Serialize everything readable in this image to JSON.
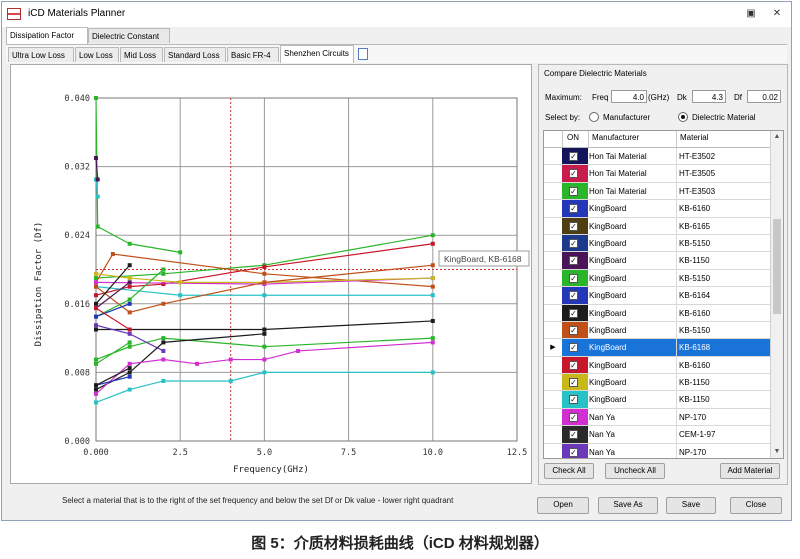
{
  "window": {
    "title": "iCD Materials Planner",
    "controls": [
      "minimize-icon",
      "close-icon"
    ],
    "colors": {
      "background": "#f0f0f0",
      "selection": "#1a73d9"
    }
  },
  "top_tabs": [
    "Dissipation Factor",
    "Dielectric Constant"
  ],
  "sub_tabs": [
    "Ultra Low Loss",
    "Low Loss",
    "Mid Loss",
    "Standard Loss",
    "Basic FR-4",
    "Shenzhen Circuits"
  ],
  "status_text": "Select a material that is to the right of the set frequency and below the set Df or Dk value - lower right quadrant",
  "compare": {
    "title": "Compare Dielectric Materials",
    "maximum_label": "Maximum:",
    "freq_label": "Freq",
    "freq_value": "4.0",
    "ghz_label": "(GHz)",
    "dk_label": "Dk",
    "dk_value": "4.3",
    "df_label": "Df",
    "df_value": "0.02",
    "select_by": "Select by:",
    "radio_manufacturer": "Manufacturer",
    "radio_dielectric": "Dielectric Material",
    "selected_radio": "Dielectric Material"
  },
  "grid": {
    "headers": [
      "ON",
      "Manufacturer",
      "Material"
    ],
    "rows": [
      {
        "manufacturer": "Hon Tai Material",
        "material": "HT-E3502",
        "color": "#14145a",
        "checked": true,
        "selected": false
      },
      {
        "manufacturer": "Hon Tai Material",
        "material": "HT-E3505",
        "color": "#c81c4c",
        "checked": true,
        "selected": false
      },
      {
        "manufacturer": "Hon Tai Material",
        "material": "HT-E3503",
        "color": "#2ab52a",
        "checked": true,
        "selected": false
      },
      {
        "manufacturer": "KingBoard",
        "material": "KB-6160",
        "color": "#2337b8",
        "checked": true,
        "selected": false
      },
      {
        "manufacturer": "KingBoard",
        "material": "KB-6165",
        "color": "#4d3f12",
        "checked": true,
        "selected": false
      },
      {
        "manufacturer": "KingBoard",
        "material": "KB-5150",
        "color": "#1c3a8c",
        "checked": true,
        "selected": false
      },
      {
        "manufacturer": "KingBoard",
        "material": "KB-1150",
        "color": "#4b1458",
        "checked": true,
        "selected": false
      },
      {
        "manufacturer": "KingBoard",
        "material": "KB-5150",
        "color": "#2ab52a",
        "checked": true,
        "selected": false
      },
      {
        "manufacturer": "KingBoard",
        "material": "KB-6164",
        "color": "#2337b8",
        "checked": true,
        "selected": false
      },
      {
        "manufacturer": "KingBoard",
        "material": "KB-6160",
        "color": "#1c1c1c",
        "checked": true,
        "selected": false
      },
      {
        "manufacturer": "KingBoard",
        "material": "KB-5150",
        "color": "#c05018",
        "checked": true,
        "selected": false
      },
      {
        "manufacturer": "KingBoard",
        "material": "KB-6168",
        "color": "#1a73d9",
        "checked": true,
        "selected": true
      },
      {
        "manufacturer": "KingBoard",
        "material": "KB-6160",
        "color": "#c8162a",
        "checked": true,
        "selected": false
      },
      {
        "manufacturer": "KingBoard",
        "material": "KB-1150",
        "color": "#c9b81a",
        "checked": true,
        "selected": false
      },
      {
        "manufacturer": "KingBoard",
        "material": "KB-1150",
        "color": "#27c2c6",
        "checked": true,
        "selected": false
      },
      {
        "manufacturer": "Nan Ya",
        "material": "NP-170",
        "color": "#d12fd1",
        "checked": true,
        "selected": false
      },
      {
        "manufacturer": "Nan Ya",
        "material": "CEM-1-97",
        "color": "#2a2a2a",
        "checked": true,
        "selected": false
      },
      {
        "manufacturer": "Nan Ya",
        "material": "NP-170",
        "color": "#6a38b8",
        "checked": true,
        "selected": false
      }
    ]
  },
  "buttons": {
    "check_all": "Check All",
    "uncheck_all": "Uncheck All",
    "add_material": "Add Material",
    "open": "Open",
    "save_as": "Save As",
    "save": "Save",
    "close": "Close"
  },
  "tooltip": "KingBoard, KB-6168",
  "caption": "图 5：介质材料损耗曲线（iCD 材料规划器）",
  "chart_data": {
    "type": "line",
    "xlabel": "Frequency(GHz)",
    "ylabel": "Dissipation Factor (Df)",
    "xlim": [
      0,
      12.5
    ],
    "ylim": [
      0,
      0.04
    ],
    "x_ticks": [
      "0.000",
      "2.5",
      "5.0",
      "7.5",
      "10.0",
      "12.5"
    ],
    "y_ticks": [
      "0.000",
      "0.008",
      "0.016",
      "0.024",
      "0.032",
      "0.040"
    ],
    "grid": true,
    "reference_lines": {
      "freq": 4.0,
      "df": 0.02
    },
    "series": [
      {
        "color": "#2ab52a",
        "points": [
          [
            0,
            0.04
          ],
          [
            0.05,
            0.025
          ],
          [
            1,
            0.023
          ],
          [
            2.5,
            0.022
          ]
        ]
      },
      {
        "color": "#2ab52a",
        "points": [
          [
            0,
            0.019
          ],
          [
            2,
            0.0195
          ],
          [
            5,
            0.0205
          ],
          [
            10,
            0.024
          ]
        ]
      },
      {
        "color": "#c8162a",
        "points": [
          [
            0,
            0.017
          ],
          [
            1,
            0.018
          ],
          [
            2,
            0.0183
          ],
          [
            5,
            0.0203
          ],
          [
            10,
            0.023
          ]
        ]
      },
      {
        "color": "#c05018",
        "points": [
          [
            0,
            0.0185
          ],
          [
            0.5,
            0.0218
          ],
          [
            5,
            0.0195
          ],
          [
            10,
            0.018
          ]
        ]
      },
      {
        "color": "#d12fd1",
        "points": [
          [
            0,
            0.0185
          ],
          [
            5,
            0.0183
          ],
          [
            10,
            0.019
          ]
        ]
      },
      {
        "color": "#c9b81a",
        "points": [
          [
            0,
            0.0195
          ],
          [
            1,
            0.019
          ],
          [
            2.5,
            0.0185
          ],
          [
            5,
            0.0185
          ],
          [
            10,
            0.019
          ]
        ]
      },
      {
        "color": "#27c2c6",
        "points": [
          [
            0,
            0.018
          ],
          [
            2.5,
            0.017
          ],
          [
            5,
            0.017
          ],
          [
            10,
            0.017
          ]
        ]
      },
      {
        "color": "#c05018",
        "points": [
          [
            0,
            0.018
          ],
          [
            1,
            0.015
          ],
          [
            2,
            0.016
          ],
          [
            5,
            0.0185
          ],
          [
            10,
            0.0205
          ]
        ]
      },
      {
        "color": "#2ab52a",
        "points": [
          [
            0,
            0.0145
          ],
          [
            1,
            0.0165
          ],
          [
            2,
            0.02
          ]
        ]
      },
      {
        "color": "#1c1c1c",
        "points": [
          [
            0,
            0.016
          ],
          [
            1,
            0.0205
          ]
        ]
      },
      {
        "color": "#4b1458",
        "points": [
          [
            0,
            0.0155
          ],
          [
            1,
            0.0185
          ]
        ]
      },
      {
        "color": "#1c1c1c",
        "points": [
          [
            0,
            0.013
          ],
          [
            5,
            0.013
          ],
          [
            10,
            0.014
          ]
        ]
      },
      {
        "color": "#2337b8",
        "points": [
          [
            0,
            0.0145
          ],
          [
            1,
            0.016
          ]
        ]
      },
      {
        "color": "#c8162a",
        "points": [
          [
            0,
            0.0155
          ],
          [
            1,
            0.013
          ]
        ]
      },
      {
        "color": "#2ab52a",
        "points": [
          [
            0,
            0.0095
          ],
          [
            1,
            0.011
          ],
          [
            2,
            0.012
          ],
          [
            5,
            0.011
          ],
          [
            10,
            0.012
          ]
        ]
      },
      {
        "color": "#6a38b8",
        "points": [
          [
            0,
            0.0135
          ],
          [
            1,
            0.0125
          ],
          [
            2,
            0.0105
          ]
        ]
      },
      {
        "color": "#1c1c1c",
        "points": [
          [
            0,
            0.006
          ],
          [
            1,
            0.008
          ],
          [
            2,
            0.0115
          ],
          [
            5,
            0.0125
          ]
        ]
      },
      {
        "color": "#d12fd1",
        "points": [
          [
            0,
            0.0055
          ],
          [
            1,
            0.009
          ],
          [
            2,
            0.0095
          ],
          [
            3,
            0.009
          ],
          [
            4,
            0.0095
          ],
          [
            5,
            0.0095
          ],
          [
            6,
            0.0105
          ],
          [
            10,
            0.0115
          ]
        ]
      },
      {
        "color": "#27c2c6",
        "points": [
          [
            0,
            0.0045
          ],
          [
            1,
            0.006
          ],
          [
            2,
            0.007
          ],
          [
            4,
            0.007
          ],
          [
            5,
            0.008
          ],
          [
            10,
            0.008
          ]
        ]
      },
      {
        "color": "#2337b8",
        "points": [
          [
            0,
            0.0065
          ],
          [
            1,
            0.0075
          ]
        ]
      },
      {
        "color": "#1c1c1c",
        "points": [
          [
            0,
            0.0065
          ],
          [
            1,
            0.0085
          ]
        ]
      },
      {
        "color": "#2ab52a",
        "points": [
          [
            0,
            0.009
          ],
          [
            1,
            0.0115
          ]
        ]
      },
      {
        "color": "#27c2c6",
        "points": [
          [
            0,
            0.0305
          ],
          [
            0.05,
            0.0285
          ]
        ]
      },
      {
        "color": "#4b1458",
        "points": [
          [
            0,
            0.033
          ],
          [
            0.05,
            0.0305
          ]
        ]
      }
    ]
  }
}
